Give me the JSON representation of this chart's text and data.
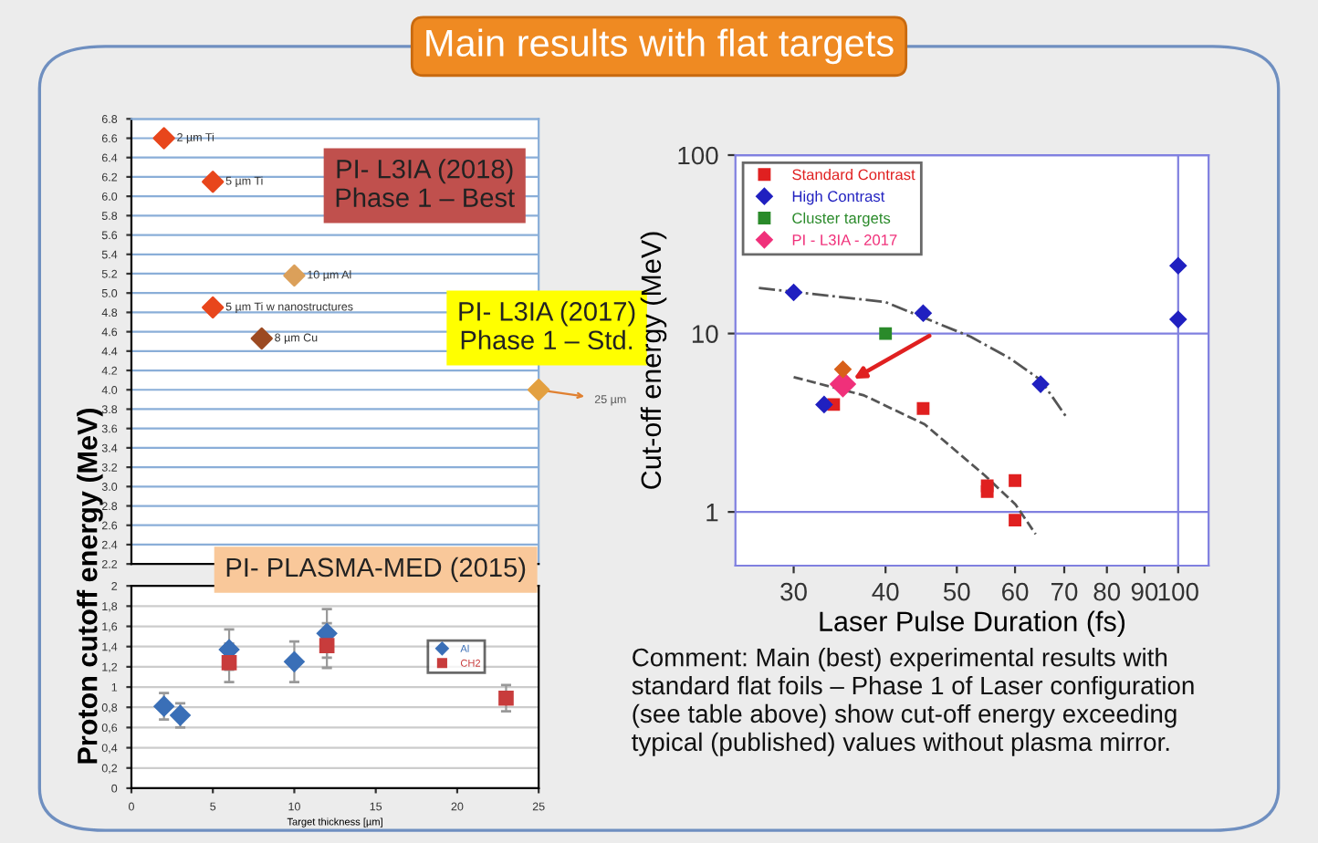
{
  "chart_data": [
    {
      "type": "scatter",
      "title": "Main results with flat targets",
      "ylabel": "Proton cutoff energy (MeV)",
      "x": [
        2,
        5,
        10,
        5,
        8,
        25
      ],
      "values": [
        6.6,
        6.15,
        5.18,
        4.85,
        4.53,
        4.0
      ],
      "colors": [
        "#e8461c",
        "#e8461c",
        "#dba05a",
        "#e8461c",
        "#9c4a22",
        "#e3a040"
      ],
      "marker": "diamond",
      "xlim": [
        0,
        25
      ],
      "ylim": [
        2.2,
        6.8
      ],
      "yticks": [
        2.2,
        2.4,
        2.6,
        2.8,
        {
          "value": 3,
          "label": "3.0"
        },
        3.2,
        3.4,
        3.6,
        3.8,
        {
          "value": 4,
          "label": "4.0"
        },
        4.2,
        4.4,
        4.6,
        4.8,
        {
          "value": 5,
          "label": "5.0"
        },
        5.2,
        5.4,
        5.6,
        5.8,
        {
          "value": 6,
          "label": "6.0"
        },
        6.2,
        6.4,
        6.6,
        6.8
      ],
      "tick_labels": "y",
      "grid": "y",
      "annotations": [
        {
          "text": "2 µm Ti",
          "x": 2,
          "y": 6.6
        },
        {
          "text": "5 µm Ti",
          "x": 5,
          "y": 6.15
        },
        {
          "text": "10 µm Al",
          "x": 10,
          "y": 5.18
        },
        {
          "text": "5 µm Ti w nanostructures",
          "x": 5,
          "y": 4.85
        },
        {
          "text": "8 µm Cu",
          "x": 8,
          "y": 4.53
        },
        {
          "text": "25 µm",
          "x": 25,
          "y": 4.0
        },
        "PI- L3IA (2018)\nPhase 1 – Best",
        "PI- L3IA (2017)\nPhase 1 – Std."
      ]
    },
    {
      "type": "scatter",
      "xlabel": "Target thickness [µm]",
      "series": [
        {
          "name": "Al",
          "color": "#3a6fb7",
          "marker": "diamond",
          "x": [
            2,
            3,
            6,
            10,
            12
          ],
          "values": [
            0.81,
            0.72,
            1.37,
            1.25,
            1.53
          ],
          "errors": [
            0.13,
            0.12,
            0.2,
            0.2,
            0.24
          ]
        },
        {
          "name": "CH2",
          "color": "#c83c3c",
          "marker": "square",
          "x": [
            6,
            12,
            23
          ],
          "values": [
            1.24,
            1.41,
            0.89
          ],
          "errors": [
            0.19,
            0.22,
            0.13
          ]
        }
      ],
      "xlim": [
        0,
        25
      ],
      "ylim": [
        0,
        2
      ],
      "xticks": [
        0,
        5,
        10,
        15,
        20,
        25
      ],
      "yticks": [
        0,
        {
          "value": 0.2,
          "label": "0,2"
        },
        {
          "value": 0.4,
          "label": "0,4"
        },
        {
          "value": 0.6,
          "label": "0,6"
        },
        {
          "value": 0.8,
          "label": "0,8"
        },
        1,
        {
          "value": 1.2,
          "label": "1,2"
        },
        {
          "value": 1.4,
          "label": "1,4"
        },
        {
          "value": 1.6,
          "label": "1,6"
        },
        {
          "value": 1.8,
          "label": "1,8"
        },
        2
      ],
      "grid": "y",
      "legend": "right",
      "annotations": [
        "PI- PLASMA-MED (2015)"
      ]
    },
    {
      "type": "scatter",
      "xlabel": "Laser Pulse Duration (fs)",
      "ylabel": "Cut-off energy (MeV)",
      "log": "xy",
      "series": [
        {
          "name": "Standard Contrast",
          "color": "#e02020",
          "marker": "square",
          "x": [
            34,
            45,
            55,
            55,
            60,
            60
          ],
          "values": [
            4.0,
            3.8,
            1.4,
            1.3,
            1.5,
            0.9
          ]
        },
        {
          "name": "High Contrast",
          "color": "#2020c0",
          "marker": "diamond",
          "x": [
            30,
            33,
            45,
            65,
            100,
            100
          ],
          "values": [
            17,
            4.0,
            13,
            5.2,
            24,
            12
          ]
        },
        {
          "name": "Cluster targets",
          "color": "#2a8a2a",
          "marker": "square",
          "x": [
            40
          ],
          "values": [
            10
          ]
        },
        {
          "name": "PI - L3IA - 2017",
          "color": "#f0307a",
          "marker": "diamond",
          "x": [
            35
          ],
          "values": [
            5.2
          ]
        },
        {
          "color": "#d8601a",
          "marker": "diamond",
          "x": [
            35
          ],
          "values": [
            6.3
          ]
        },
        {
          "type": "line",
          "color": "#555555",
          "line_style": "dashdot",
          "x": [
            26.9,
            40,
            52.2,
            58.9,
            65,
            70.3
          ],
          "values": [
            18,
            15,
            9.6,
            7.3,
            5.5,
            3.45
          ]
        },
        {
          "type": "line",
          "color": "#555555",
          "line_style": "dashed",
          "x": [
            30,
            37.4,
            45.2,
            54.6,
            60.1,
            64
          ],
          "values": [
            5.7,
            4.5,
            3.1,
            1.6,
            1.1,
            0.75
          ]
        }
      ],
      "xlim": [
        25,
        110
      ],
      "ylim": [
        0.5,
        100
      ],
      "xticks": [
        30,
        40,
        50,
        60,
        70,
        80,
        90,
        100
      ],
      "yticks": [
        1,
        10,
        100
      ],
      "grid": "y",
      "legend": "top left",
      "ref_lines": [
        {
          "axis": "x",
          "value": 100
        }
      ],
      "annotations": [
        "Comment: Main (best) experimental results with\nstandard flat foils – Phase 1 of Laser configuration\n(see table above) show cut-off energy exceeding\ntypical (published) values without plasma mirror."
      ]
    }
  ]
}
